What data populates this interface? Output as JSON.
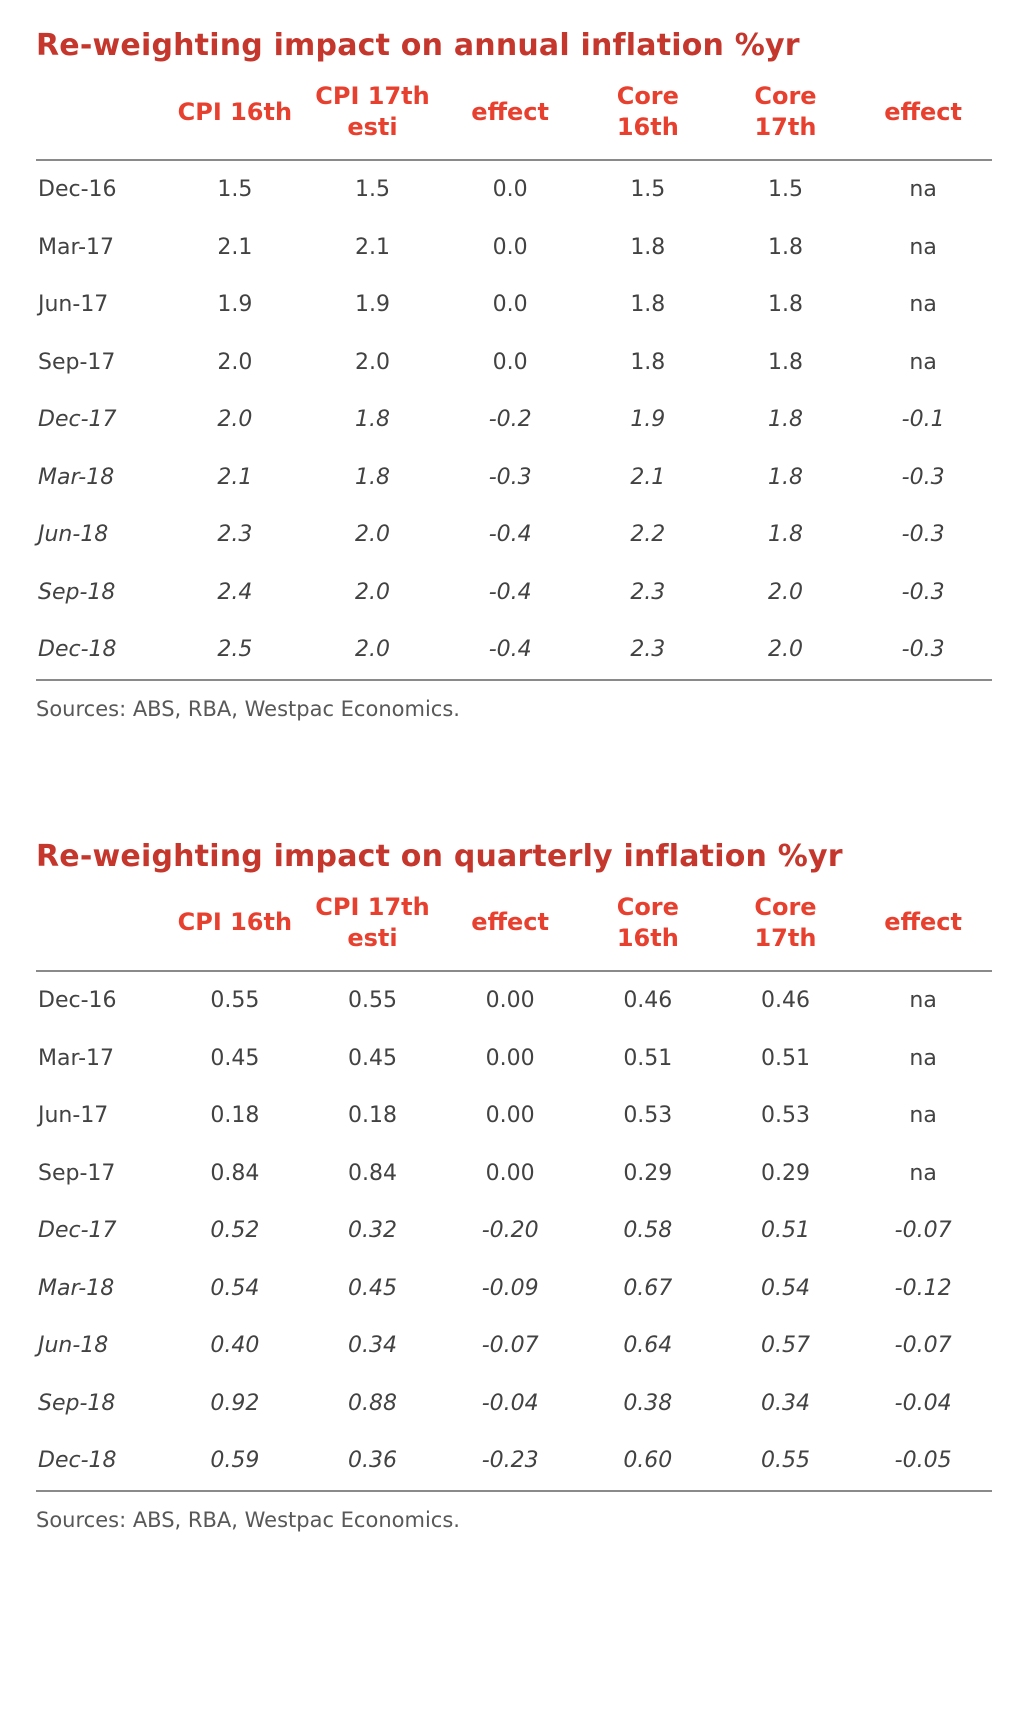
{
  "colors": {
    "title_red": "#c5372d",
    "header_red": "#e8402e"
  },
  "chart_data": [
    {
      "type": "table",
      "title": "Re-weighting impact on annual inflation %yr",
      "columns": [
        "",
        "CPI 16th",
        "CPI 17th\nesti",
        "effect",
        "Core\n16th",
        "Core\n17th",
        "effect"
      ],
      "rows": [
        {
          "label": "Dec-16",
          "italic": false,
          "values": [
            "1.5",
            "1.5",
            "0.0",
            "1.5",
            "1.5",
            "na"
          ]
        },
        {
          "label": "Mar-17",
          "italic": false,
          "values": [
            "2.1",
            "2.1",
            "0.0",
            "1.8",
            "1.8",
            "na"
          ]
        },
        {
          "label": "Jun-17",
          "italic": false,
          "values": [
            "1.9",
            "1.9",
            "0.0",
            "1.8",
            "1.8",
            "na"
          ]
        },
        {
          "label": "Sep-17",
          "italic": false,
          "values": [
            "2.0",
            "2.0",
            "0.0",
            "1.8",
            "1.8",
            "na"
          ]
        },
        {
          "label": "Dec-17",
          "italic": true,
          "values": [
            "2.0",
            "1.8",
            "-0.2",
            "1.9",
            "1.8",
            "-0.1"
          ]
        },
        {
          "label": "Mar-18",
          "italic": true,
          "values": [
            "2.1",
            "1.8",
            "-0.3",
            "2.1",
            "1.8",
            "-0.3"
          ]
        },
        {
          "label": "Jun-18",
          "italic": true,
          "values": [
            "2.3",
            "2.0",
            "-0.4",
            "2.2",
            "1.8",
            "-0.3"
          ]
        },
        {
          "label": "Sep-18",
          "italic": true,
          "values": [
            "2.4",
            "2.0",
            "-0.4",
            "2.3",
            "2.0",
            "-0.3"
          ]
        },
        {
          "label": "Dec-18",
          "italic": true,
          "values": [
            "2.5",
            "2.0",
            "-0.4",
            "2.3",
            "2.0",
            "-0.3"
          ]
        }
      ],
      "source": "Sources: ABS, RBA, Westpac Economics."
    },
    {
      "type": "table",
      "title": "Re-weighting impact on quarterly inflation %yr",
      "columns": [
        "",
        "CPI 16th",
        "CPI 17th\nesti",
        "effect",
        "Core\n16th",
        "Core\n17th",
        "effect"
      ],
      "rows": [
        {
          "label": "Dec-16",
          "italic": false,
          "values": [
            "0.55",
            "0.55",
            "0.00",
            "0.46",
            "0.46",
            "na"
          ]
        },
        {
          "label": "Mar-17",
          "italic": false,
          "values": [
            "0.45",
            "0.45",
            "0.00",
            "0.51",
            "0.51",
            "na"
          ]
        },
        {
          "label": "Jun-17",
          "italic": false,
          "values": [
            "0.18",
            "0.18",
            "0.00",
            "0.53",
            "0.53",
            "na"
          ]
        },
        {
          "label": "Sep-17",
          "italic": false,
          "values": [
            "0.84",
            "0.84",
            "0.00",
            "0.29",
            "0.29",
            "na"
          ]
        },
        {
          "label": "Dec-17",
          "italic": true,
          "values": [
            "0.52",
            "0.32",
            "-0.20",
            "0.58",
            "0.51",
            "-0.07"
          ]
        },
        {
          "label": "Mar-18",
          "italic": true,
          "values": [
            "0.54",
            "0.45",
            "-0.09",
            "0.67",
            "0.54",
            "-0.12"
          ]
        },
        {
          "label": "Jun-18",
          "italic": true,
          "values": [
            "0.40",
            "0.34",
            "-0.07",
            "0.64",
            "0.57",
            "-0.07"
          ]
        },
        {
          "label": "Sep-18",
          "italic": true,
          "values": [
            "0.92",
            "0.88",
            "-0.04",
            "0.38",
            "0.34",
            "-0.04"
          ]
        },
        {
          "label": "Dec-18",
          "italic": true,
          "values": [
            "0.59",
            "0.36",
            "-0.23",
            "0.60",
            "0.55",
            "-0.05"
          ]
        }
      ],
      "source": "Sources: ABS, RBA, Westpac Economics."
    }
  ]
}
